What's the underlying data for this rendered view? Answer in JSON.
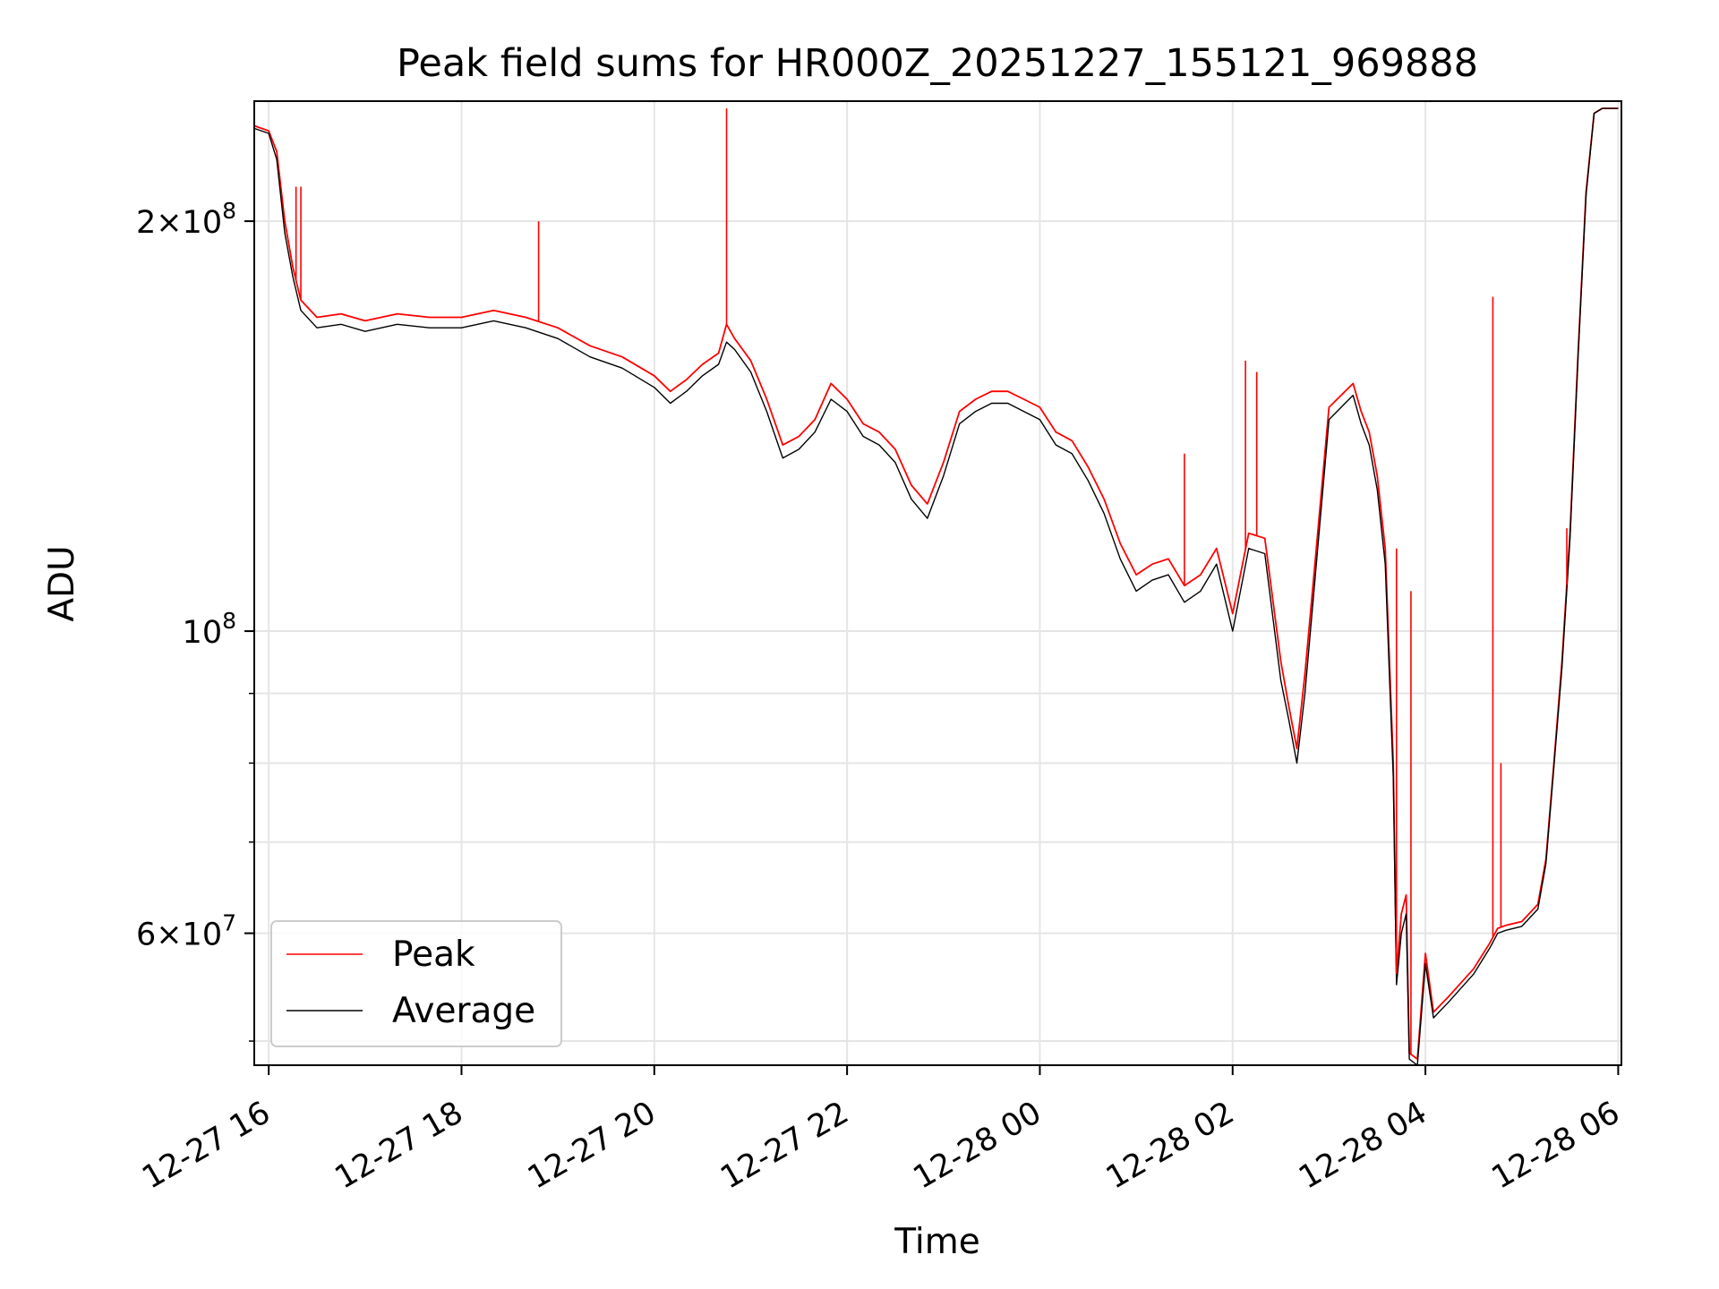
{
  "chart_data": {
    "type": "line",
    "title": "Peak field sums for HR000Z_20251227_155121_969888",
    "xlabel": "Time",
    "ylabel": "ADU",
    "y_scale": "log",
    "ylim": [
      48000000,
      245000000
    ],
    "xlim": [
      "2025-12-27 15:51",
      "2025-12-28 06:02"
    ],
    "grid": true,
    "legend_position": "lower-left",
    "x_ticks": [
      {
        "t": "2025-12-27 16:00",
        "label": "12-27 16"
      },
      {
        "t": "2025-12-27 18:00",
        "label": "12-27 18"
      },
      {
        "t": "2025-12-27 20:00",
        "label": "12-27 20"
      },
      {
        "t": "2025-12-27 22:00",
        "label": "12-27 22"
      },
      {
        "t": "2025-12-28 00:00",
        "label": "12-28 00"
      },
      {
        "t": "2025-12-28 02:00",
        "label": "12-28 02"
      },
      {
        "t": "2025-12-28 04:00",
        "label": "12-28 04"
      },
      {
        "t": "2025-12-28 06:00",
        "label": "12-28 06"
      }
    ],
    "y_ticks": [
      {
        "value": 200000000,
        "mantissa": "2",
        "exp": "8"
      },
      {
        "value": 100000000,
        "mantissa": "",
        "exp": "8"
      },
      {
        "value": 60000000,
        "mantissa": "6",
        "exp": "7"
      }
    ],
    "y_minor_ticks": [
      50000000,
      70000000,
      80000000,
      90000000
    ],
    "series": [
      {
        "name": "Peak",
        "color": "#ff0000",
        "x": [
          "2025-12-27 15:51",
          "2025-12-27 16:00",
          "2025-12-27 16:05",
          "2025-12-27 16:10",
          "2025-12-27 16:15",
          "2025-12-27 16:20",
          "2025-12-27 16:30",
          "2025-12-27 16:45",
          "2025-12-27 17:00",
          "2025-12-27 17:20",
          "2025-12-27 17:40",
          "2025-12-27 18:00",
          "2025-12-27 18:20",
          "2025-12-27 18:40",
          "2025-12-27 19:00",
          "2025-12-27 19:20",
          "2025-12-27 19:40",
          "2025-12-27 20:00",
          "2025-12-27 20:10",
          "2025-12-27 20:20",
          "2025-12-27 20:30",
          "2025-12-27 20:40",
          "2025-12-27 20:45",
          "2025-12-27 20:50",
          "2025-12-27 21:00",
          "2025-12-27 21:10",
          "2025-12-27 21:20",
          "2025-12-27 21:30",
          "2025-12-27 21:40",
          "2025-12-27 21:50",
          "2025-12-27 22:00",
          "2025-12-27 22:10",
          "2025-12-27 22:20",
          "2025-12-27 22:30",
          "2025-12-27 22:40",
          "2025-12-27 22:50",
          "2025-12-27 23:00",
          "2025-12-27 23:10",
          "2025-12-27 23:20",
          "2025-12-27 23:30",
          "2025-12-27 23:40",
          "2025-12-27 23:50",
          "2025-12-28 00:00",
          "2025-12-28 00:10",
          "2025-12-28 00:20",
          "2025-12-28 00:30",
          "2025-12-28 00:40",
          "2025-12-28 00:50",
          "2025-12-28 01:00",
          "2025-12-28 01:10",
          "2025-12-28 01:20",
          "2025-12-28 01:30",
          "2025-12-28 01:40",
          "2025-12-28 01:50",
          "2025-12-28 02:00",
          "2025-12-28 02:10",
          "2025-12-28 02:20",
          "2025-12-28 02:30",
          "2025-12-28 02:35",
          "2025-12-28 02:40",
          "2025-12-28 02:45",
          "2025-12-28 02:50",
          "2025-12-28 03:00",
          "2025-12-28 03:10",
          "2025-12-28 03:15",
          "2025-12-28 03:20",
          "2025-12-28 03:25",
          "2025-12-28 03:30",
          "2025-12-28 03:35",
          "2025-12-28 03:40",
          "2025-12-28 03:42",
          "2025-12-28 03:45",
          "2025-12-28 03:48",
          "2025-12-28 03:50",
          "2025-12-28 03:55",
          "2025-12-28 04:00",
          "2025-12-28 04:05",
          "2025-12-28 04:15",
          "2025-12-28 04:30",
          "2025-12-28 04:40",
          "2025-12-28 04:45",
          "2025-12-28 04:50",
          "2025-12-28 05:00",
          "2025-12-28 05:10",
          "2025-12-28 05:15",
          "2025-12-28 05:20",
          "2025-12-28 05:25",
          "2025-12-28 05:30",
          "2025-12-28 05:35",
          "2025-12-28 05:40",
          "2025-12-28 05:45",
          "2025-12-28 05:50",
          "2025-12-28 06:00"
        ],
        "y": [
          235000000,
          233000000,
          225000000,
          200000000,
          185000000,
          175000000,
          170000000,
          171000000,
          169000000,
          171000000,
          170000000,
          170000000,
          172000000,
          170000000,
          167000000,
          162000000,
          159000000,
          154000000,
          150000000,
          153000000,
          157000000,
          160000000,
          168000000,
          164000000,
          158000000,
          148000000,
          137000000,
          139000000,
          143000000,
          152000000,
          148000000,
          142000000,
          140000000,
          136000000,
          128000000,
          124000000,
          133000000,
          145000000,
          148000000,
          150000000,
          150000000,
          148000000,
          146000000,
          140000000,
          138000000,
          132000000,
          125000000,
          116000000,
          110000000,
          112000000,
          113000000,
          108000000,
          110000000,
          115000000,
          103000000,
          118000000,
          117000000,
          95000000,
          88000000,
          82000000,
          93000000,
          108000000,
          146000000,
          150000000,
          152000000,
          145000000,
          140000000,
          130000000,
          115000000,
          80000000,
          56000000,
          62000000,
          64000000,
          49000000,
          48500000,
          58000000,
          52500000,
          54000000,
          56500000,
          59000000,
          60500000,
          60800000,
          61200000,
          63000000,
          68000000,
          80000000,
          95000000,
          118000000,
          160000000,
          210000000,
          240000000,
          242000000,
          242000000
        ]
      },
      {
        "name": "Average",
        "color": "#000000",
        "x": [
          "2025-12-27 15:51",
          "2025-12-27 16:00",
          "2025-12-27 16:05",
          "2025-12-27 16:10",
          "2025-12-27 16:15",
          "2025-12-27 16:20",
          "2025-12-27 16:30",
          "2025-12-27 16:45",
          "2025-12-27 17:00",
          "2025-12-27 17:20",
          "2025-12-27 17:40",
          "2025-12-27 18:00",
          "2025-12-27 18:20",
          "2025-12-27 18:40",
          "2025-12-27 19:00",
          "2025-12-27 19:20",
          "2025-12-27 19:40",
          "2025-12-27 20:00",
          "2025-12-27 20:10",
          "2025-12-27 20:20",
          "2025-12-27 20:30",
          "2025-12-27 20:40",
          "2025-12-27 20:45",
          "2025-12-27 20:50",
          "2025-12-27 21:00",
          "2025-12-27 21:10",
          "2025-12-27 21:20",
          "2025-12-27 21:30",
          "2025-12-27 21:40",
          "2025-12-27 21:50",
          "2025-12-27 22:00",
          "2025-12-27 22:10",
          "2025-12-27 22:20",
          "2025-12-27 22:30",
          "2025-12-27 22:40",
          "2025-12-27 22:50",
          "2025-12-27 23:00",
          "2025-12-27 23:10",
          "2025-12-27 23:20",
          "2025-12-27 23:30",
          "2025-12-27 23:40",
          "2025-12-27 23:50",
          "2025-12-28 00:00",
          "2025-12-28 00:10",
          "2025-12-28 00:20",
          "2025-12-28 00:30",
          "2025-12-28 00:40",
          "2025-12-28 00:50",
          "2025-12-28 01:00",
          "2025-12-28 01:10",
          "2025-12-28 01:20",
          "2025-12-28 01:30",
          "2025-12-28 01:40",
          "2025-12-28 01:50",
          "2025-12-28 02:00",
          "2025-12-28 02:10",
          "2025-12-28 02:20",
          "2025-12-28 02:30",
          "2025-12-28 02:35",
          "2025-12-28 02:40",
          "2025-12-28 02:45",
          "2025-12-28 02:50",
          "2025-12-28 03:00",
          "2025-12-28 03:10",
          "2025-12-28 03:15",
          "2025-12-28 03:20",
          "2025-12-28 03:25",
          "2025-12-28 03:30",
          "2025-12-28 03:35",
          "2025-12-28 03:40",
          "2025-12-28 03:42",
          "2025-12-28 03:45",
          "2025-12-28 03:48",
          "2025-12-28 03:50",
          "2025-12-28 03:55",
          "2025-12-28 04:00",
          "2025-12-28 04:05",
          "2025-12-28 04:15",
          "2025-12-28 04:30",
          "2025-12-28 04:40",
          "2025-12-28 04:45",
          "2025-12-28 04:50",
          "2025-12-28 05:00",
          "2025-12-28 05:10",
          "2025-12-28 05:15",
          "2025-12-28 05:20",
          "2025-12-28 05:25",
          "2025-12-28 05:30",
          "2025-12-28 05:35",
          "2025-12-28 05:40",
          "2025-12-28 05:45",
          "2025-12-28 05:50",
          "2025-12-28 06:00"
        ],
        "y": [
          234000000,
          232000000,
          222000000,
          196000000,
          182000000,
          172000000,
          167000000,
          168000000,
          166000000,
          168000000,
          167000000,
          167000000,
          169000000,
          167000000,
          164000000,
          159000000,
          156000000,
          151000000,
          147000000,
          150000000,
          154000000,
          157000000,
          163000000,
          161000000,
          155000000,
          145000000,
          134000000,
          136000000,
          140000000,
          148000000,
          145000000,
          139000000,
          137000000,
          133000000,
          125000000,
          121000000,
          130000000,
          142000000,
          145000000,
          147000000,
          147000000,
          145000000,
          143000000,
          137000000,
          135000000,
          129000000,
          122000000,
          113000000,
          107000000,
          109000000,
          110000000,
          105000000,
          107000000,
          112000000,
          100000000,
          115000000,
          114000000,
          92000000,
          86000000,
          80000000,
          90000000,
          105000000,
          143000000,
          147000000,
          149000000,
          142000000,
          137000000,
          127000000,
          112000000,
          78000000,
          55000000,
          60000000,
          62000000,
          48500000,
          48000000,
          57000000,
          52000000,
          53500000,
          56000000,
          58500000,
          60000000,
          60300000,
          60700000,
          62500000,
          67500000,
          79500000,
          94000000,
          117000000,
          159000000,
          209000000,
          240000000,
          242000000,
          242000000
        ]
      }
    ],
    "spikes": [
      {
        "series": "Peak",
        "t": "2025-12-27 16:17",
        "y": 212000000
      },
      {
        "series": "Peak",
        "t": "2025-12-27 16:20",
        "y": 212000000
      },
      {
        "series": "Peak",
        "t": "2025-12-27 18:48",
        "y": 200000000
      },
      {
        "series": "Peak",
        "t": "2025-12-27 20:45",
        "y": 242000000
      },
      {
        "series": "Peak",
        "t": "2025-12-28 01:30",
        "y": 135000000
      },
      {
        "series": "Peak",
        "t": "2025-12-28 02:08",
        "y": 158000000
      },
      {
        "series": "Peak",
        "t": "2025-12-28 02:15",
        "y": 155000000
      },
      {
        "series": "Peak",
        "t": "2025-12-28 03:42",
        "y": 115000000
      },
      {
        "series": "Peak",
        "t": "2025-12-28 03:51",
        "y": 107000000
      },
      {
        "series": "Peak",
        "t": "2025-12-28 04:42",
        "y": 176000000
      },
      {
        "series": "Peak",
        "t": "2025-12-28 04:47",
        "y": 80000000
      },
      {
        "series": "Peak",
        "t": "2025-12-28 05:28",
        "y": 119000000
      }
    ]
  }
}
